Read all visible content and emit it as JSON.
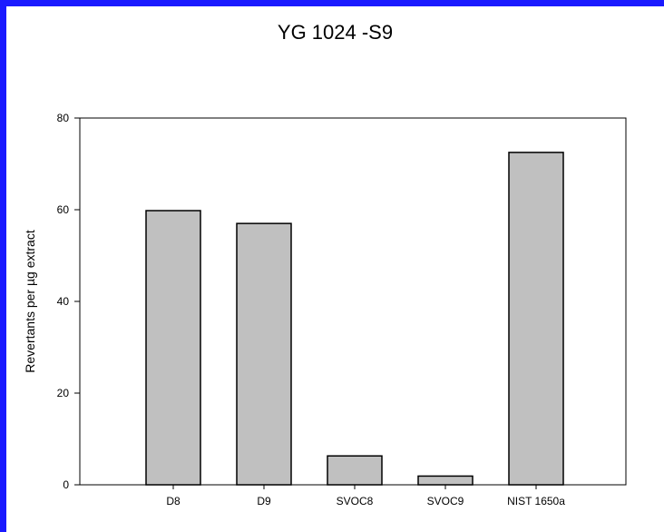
{
  "chart_data": {
    "type": "bar",
    "title": "YG 1024 -S9",
    "xlabel": "",
    "ylabel": "Revertants per µg extract",
    "categories": [
      "D8",
      "D9",
      "SVOC8",
      "SVOC9",
      "NIST 1650a"
    ],
    "values": [
      59.8,
      57.0,
      6.3,
      1.9,
      72.5
    ],
    "ylim": [
      0,
      80
    ],
    "yticks": [
      "0",
      "20",
      "40",
      "60",
      "80"
    ],
    "grid": false,
    "colors": {
      "bar_fill": "#c0c0c0",
      "bar_stroke": "#000000",
      "border": "#1a1aff"
    }
  }
}
